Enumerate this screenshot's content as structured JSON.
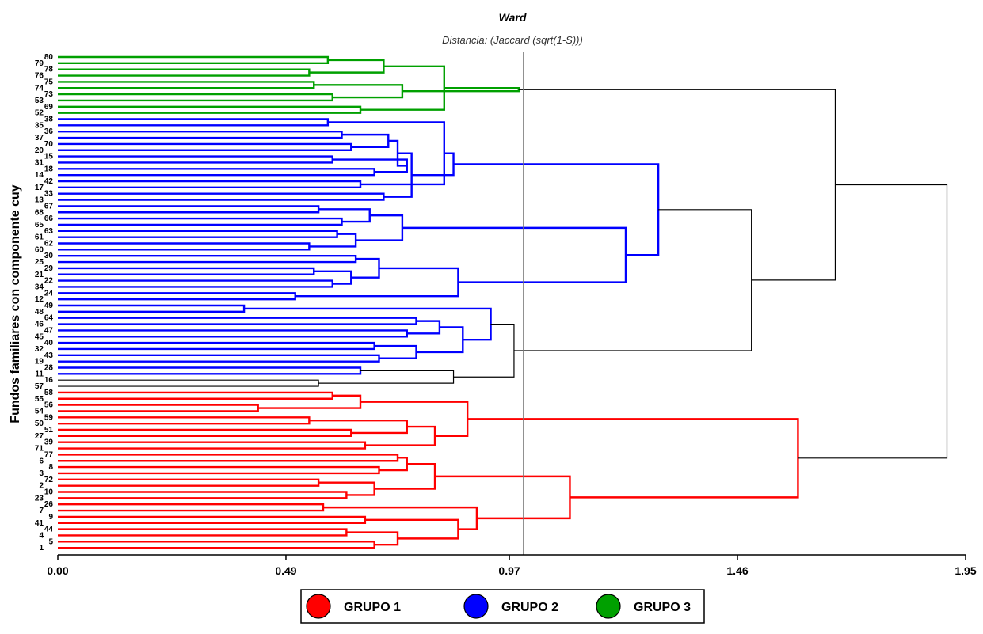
{
  "chart_data": {
    "type": "dendrogram",
    "title": "Ward",
    "subtitle": "Distancia: (Jaccard (sqrt(1-S)))",
    "ylabel": "Fundos familiares con componente cuy",
    "xlabel": "",
    "xlim": [
      0,
      1.95
    ],
    "x_ticks": [
      "0.00",
      "0.49",
      "0.97",
      "1.46",
      "1.95"
    ],
    "cut_line": 1.0,
    "grid": false,
    "legend_position": "bottom-center",
    "groups": [
      {
        "label": "GRUPO 1",
        "color": "#ff0000"
      },
      {
        "label": "GRUPO 2",
        "color": "#0000ff"
      },
      {
        "label": "GRUPO 3",
        "color": "#00a000"
      }
    ],
    "leaves": [
      "80",
      "79",
      "78",
      "76",
      "75",
      "74",
      "73",
      "53",
      "69",
      "52",
      "38",
      "35",
      "36",
      "37",
      "70",
      "20",
      "15",
      "31",
      "18",
      "14",
      "42",
      "17",
      "33",
      "13",
      "67",
      "68",
      "66",
      "65",
      "63",
      "61",
      "62",
      "60",
      "30",
      "25",
      "29",
      "21",
      "22",
      "34",
      "24",
      "12",
      "49",
      "48",
      "64",
      "46",
      "47",
      "45",
      "40",
      "32",
      "43",
      "19",
      "28",
      "11",
      "16",
      "57",
      "58",
      "55",
      "56",
      "54",
      "59",
      "50",
      "51",
      "27",
      "39",
      "71",
      "77",
      "6",
      "8",
      "3",
      "72",
      "2",
      "10",
      "23",
      "26",
      "7",
      "9",
      "41",
      "44",
      "4",
      "5",
      "1"
    ],
    "merges": [
      {
        "a": "80",
        "b": "79",
        "h": 0.58
      },
      {
        "a": "78",
        "b": "76",
        "h": 0.54
      },
      {
        "a": "75",
        "b": "74",
        "h": 0.55
      },
      {
        "a": "73",
        "b": "53",
        "h": 0.59
      },
      {
        "a": "69",
        "b": "52",
        "h": 0.65
      },
      {
        "a": "m0",
        "b": "m1",
        "h": 0.7
      },
      {
        "a": "m2",
        "b": "m3",
        "h": 0.74
      },
      {
        "a": "m5",
        "b": "m4",
        "h": 0.83
      },
      {
        "a": "m6",
        "b": "m7",
        "h": 0.99
      },
      {
        "a": "38",
        "b": "35",
        "h": 0.58
      },
      {
        "a": "36",
        "b": "37",
        "h": 0.61
      },
      {
        "a": "70",
        "b": "20",
        "h": 0.63
      },
      {
        "a": "15",
        "b": "31",
        "h": 0.59
      },
      {
        "a": "18",
        "b": "14",
        "h": 0.68
      },
      {
        "a": "m10",
        "b": "m11",
        "h": 0.71
      },
      {
        "a": "m12",
        "b": "m13",
        "h": 0.75
      },
      {
        "a": "42",
        "b": "17",
        "h": 0.65
      },
      {
        "a": "33",
        "b": "13",
        "h": 0.7
      },
      {
        "a": "m15",
        "b": "m14",
        "h": 0.73
      },
      {
        "a": "m17",
        "b": "m18",
        "h": 0.76
      },
      {
        "a": "m9",
        "b": "m16",
        "h": 0.83
      },
      {
        "a": "m20",
        "b": "m19",
        "h": 0.85
      },
      {
        "a": "67",
        "b": "68",
        "h": 0.56
      },
      {
        "a": "66",
        "b": "65",
        "h": 0.61
      },
      {
        "a": "63",
        "b": "61",
        "h": 0.6
      },
      {
        "a": "62",
        "b": "60",
        "h": 0.54
      },
      {
        "a": "m22",
        "b": "m23",
        "h": 0.67
      },
      {
        "a": "m24",
        "b": "m25",
        "h": 0.64
      },
      {
        "a": "m26",
        "b": "m27",
        "h": 0.74
      },
      {
        "a": "30",
        "b": "25",
        "h": 0.64
      },
      {
        "a": "29",
        "b": "21",
        "h": 0.55
      },
      {
        "a": "22",
        "b": "34",
        "h": 0.59
      },
      {
        "a": "24",
        "b": "12",
        "h": 0.51
      },
      {
        "a": "m30",
        "b": "m31",
        "h": 0.63
      },
      {
        "a": "m29",
        "b": "m33",
        "h": 0.69
      },
      {
        "a": "m34",
        "b": "m32",
        "h": 0.86
      },
      {
        "a": "m28",
        "b": "m35",
        "h": 1.22
      },
      {
        "a": "m21",
        "b": "m36",
        "h": 1.29
      },
      {
        "a": "49",
        "b": "48",
        "h": 0.4
      },
      {
        "a": "64",
        "b": "46",
        "h": 0.77
      },
      {
        "a": "47",
        "b": "45",
        "h": 0.75
      },
      {
        "a": "40",
        "b": "32",
        "h": 0.68
      },
      {
        "a": "43",
        "b": "19",
        "h": 0.69
      },
      {
        "a": "m41",
        "b": "m42",
        "h": 0.77
      },
      {
        "a": "m39",
        "b": "m40",
        "h": 0.82
      },
      {
        "a": "m44",
        "b": "m43",
        "h": 0.87
      },
      {
        "a": "m38",
        "b": "m45",
        "h": 0.93
      },
      {
        "a": "28",
        "b": "11",
        "h": 0.65
      },
      {
        "a": "16",
        "b": "57",
        "h": 0.56
      },
      {
        "a": "m47",
        "b": "m48",
        "h": 0.85
      },
      {
        "a": "m46",
        "b": "m49",
        "h": 0.98
      },
      {
        "a": "m37",
        "b": "m50",
        "h": 1.49
      },
      {
        "a": "m8",
        "b": "m51",
        "h": 1.67
      },
      {
        "a": "58",
        "b": "55",
        "h": 0.59
      },
      {
        "a": "56",
        "b": "54",
        "h": 0.43
      },
      {
        "a": "m53",
        "b": "m54",
        "h": 0.65
      },
      {
        "a": "59",
        "b": "50",
        "h": 0.54
      },
      {
        "a": "51",
        "b": "27",
        "h": 0.63
      },
      {
        "a": "39",
        "b": "71",
        "h": 0.66
      },
      {
        "a": "m56",
        "b": "m57",
        "h": 0.75
      },
      {
        "a": "m59",
        "b": "m58",
        "h": 0.81
      },
      {
        "a": "m55",
        "b": "m60",
        "h": 0.88
      },
      {
        "a": "77",
        "b": "6",
        "h": 0.73
      },
      {
        "a": "8",
        "b": "3",
        "h": 0.69
      },
      {
        "a": "m62",
        "b": "m63",
        "h": 0.75
      },
      {
        "a": "72",
        "b": "2",
        "h": 0.56
      },
      {
        "a": "10",
        "b": "23",
        "h": 0.62
      },
      {
        "a": "m65",
        "b": "m66",
        "h": 0.68
      },
      {
        "a": "m64",
        "b": "m67",
        "h": 0.81
      },
      {
        "a": "26",
        "b": "7",
        "h": 0.57
      },
      {
        "a": "9",
        "b": "41",
        "h": 0.66
      },
      {
        "a": "44",
        "b": "4",
        "h": 0.62
      },
      {
        "a": "5",
        "b": "1",
        "h": 0.68
      },
      {
        "a": "m71",
        "b": "m72",
        "h": 0.73
      },
      {
        "a": "m70",
        "b": "m73",
        "h": 0.86
      },
      {
        "a": "m69",
        "b": "m74",
        "h": 0.9
      },
      {
        "a": "m68",
        "b": "m75",
        "h": 1.1
      },
      {
        "a": "m61",
        "b": "m76",
        "h": 1.59
      },
      {
        "a": "m52",
        "b": "m77",
        "h": 1.91
      }
    ]
  }
}
